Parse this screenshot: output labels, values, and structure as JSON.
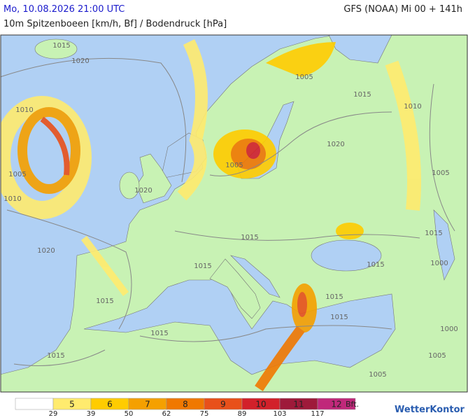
{
  "header": {
    "timestamp": "Mo, 10.08.2026 21:00 UTC",
    "model": "GFS (NOAA) Mi 00 + 141h",
    "subtitle": "10m Spitzenboeen [km/h, Bf] / Bodendruck [hPa]"
  },
  "map": {
    "isobar_labels": [
      "1015",
      "1020",
      "1010",
      "1005",
      "1010",
      "1020",
      "1020",
      "1015",
      "1015",
      "1015",
      "1005",
      "1015",
      "1015",
      "1005",
      "1015",
      "1020",
      "1010",
      "1005",
      "1015",
      "1000",
      "1015",
      "1015",
      "1015",
      "1000",
      "1005",
      "1005"
    ]
  },
  "legend": {
    "colors": [
      "#ffffff",
      "#ffeb6e",
      "#ffcc00",
      "#f5a000",
      "#f07800",
      "#e8501a",
      "#d2202a",
      "#9e1a3a",
      "#c0287a"
    ],
    "bft": [
      5,
      6,
      7,
      8,
      9,
      10,
      11,
      12
    ],
    "unit": "Bft.",
    "kmh": [
      29,
      39,
      50,
      62,
      75,
      89,
      103,
      117
    ]
  },
  "brand": "WetterKontor"
}
